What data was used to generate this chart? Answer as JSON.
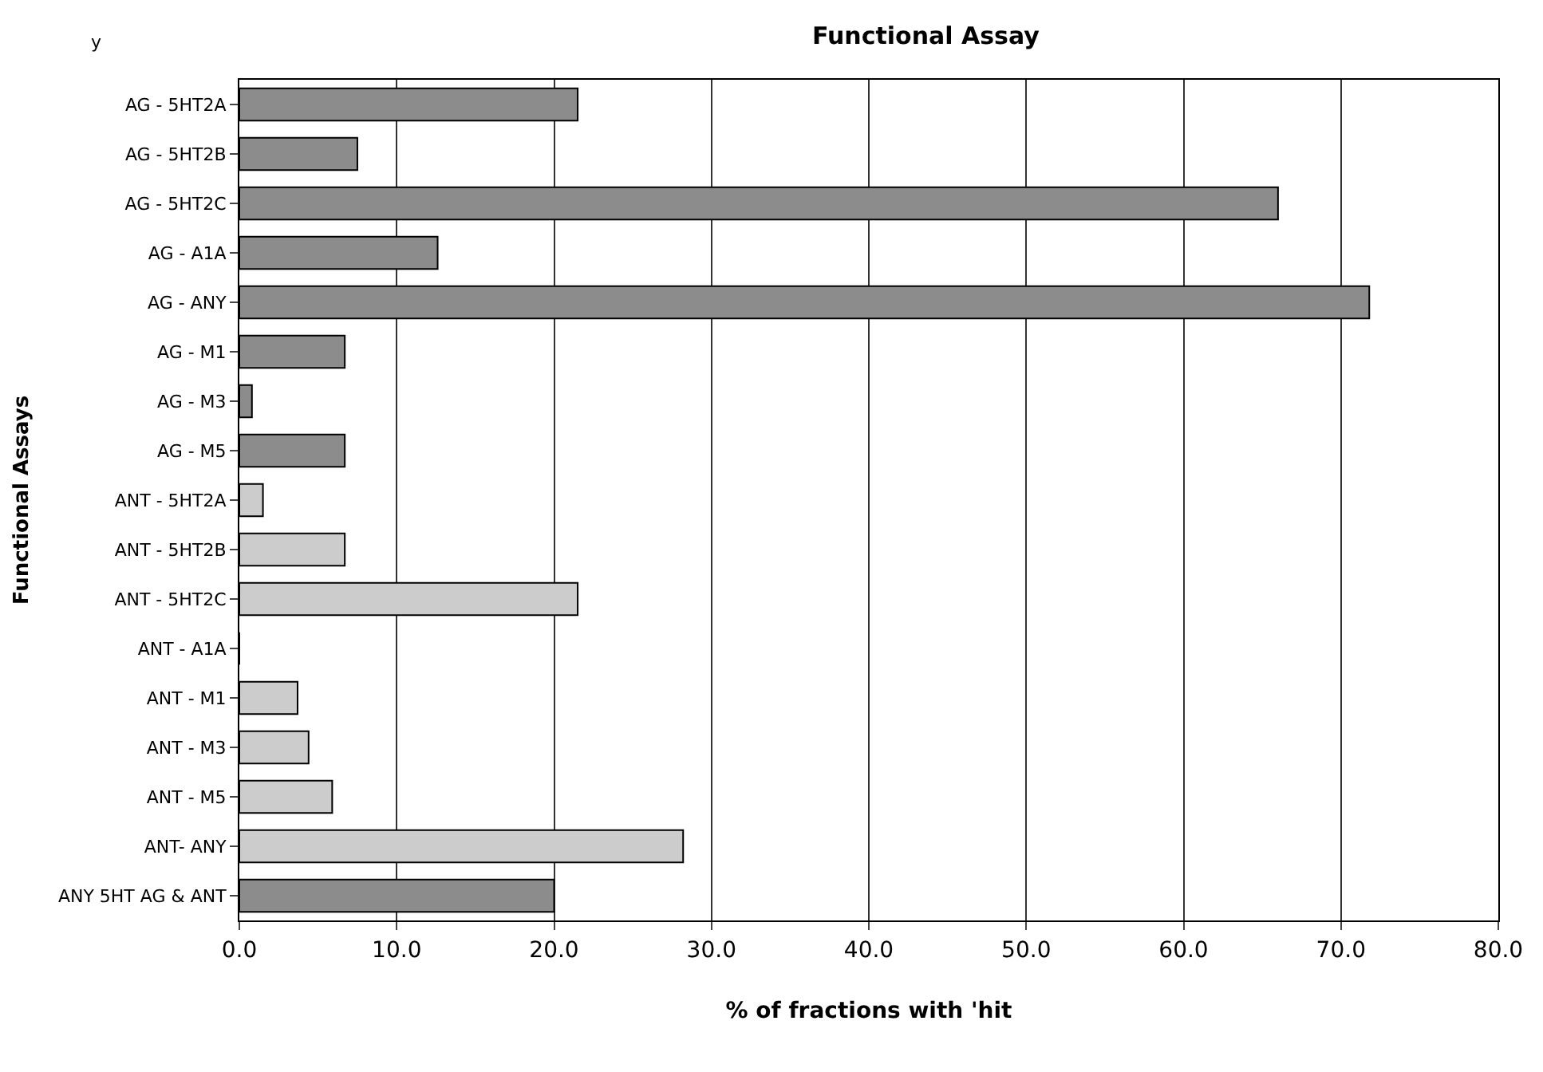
{
  "chart_data": {
    "type": "bar",
    "orientation": "horizontal",
    "title": "Functional Assay",
    "xlabel": "% of fractions with 'hit",
    "ylabel": "Functional Assays",
    "annotations": [
      "y"
    ],
    "categories": [
      "AG - 5HT2A",
      "AG - 5HT2B",
      "AG - 5HT2C",
      "AG - A1A",
      "AG - ANY",
      "AG - M1",
      "AG - M3",
      "AG - M5",
      "ANT - 5HT2A",
      "ANT - 5HT2B",
      "ANT - 5HT2C",
      "ANT - A1A",
      "ANT - M1",
      "ANT - M3",
      "ANT - M5",
      "ANT- ANY",
      "ANY 5HT AG & ANT"
    ],
    "values": [
      21.5,
      7.5,
      66.0,
      12.6,
      71.8,
      6.7,
      0.8,
      6.7,
      1.5,
      6.7,
      21.5,
      0,
      3.7,
      4.4,
      5.9,
      28.2,
      20.0
    ],
    "colors": [
      "#8c8c8c",
      "#8c8c8c",
      "#8c8c8c",
      "#8c8c8c",
      "#8c8c8c",
      "#8c8c8c",
      "#8c8c8c",
      "#8c8c8c",
      "#cccccc",
      "#cccccc",
      "#cccccc",
      "#8c8c8c",
      "#cccccc",
      "#cccccc",
      "#cccccc",
      "#cccccc",
      "#8c8c8c"
    ],
    "xlim": [
      0,
      80
    ],
    "xticks": [
      {
        "value": 0,
        "label": "0.0"
      },
      {
        "value": 10,
        "label": "10.0"
      },
      {
        "value": 20,
        "label": "20.0"
      },
      {
        "value": 30,
        "label": "30.0"
      },
      {
        "value": 40,
        "label": "40.0"
      },
      {
        "value": 50,
        "label": "50.0"
      },
      {
        "value": 60,
        "label": "60.0"
      },
      {
        "value": 70,
        "label": "70.0"
      },
      {
        "value": 80,
        "label": "80.0"
      }
    ],
    "grid": "x"
  }
}
